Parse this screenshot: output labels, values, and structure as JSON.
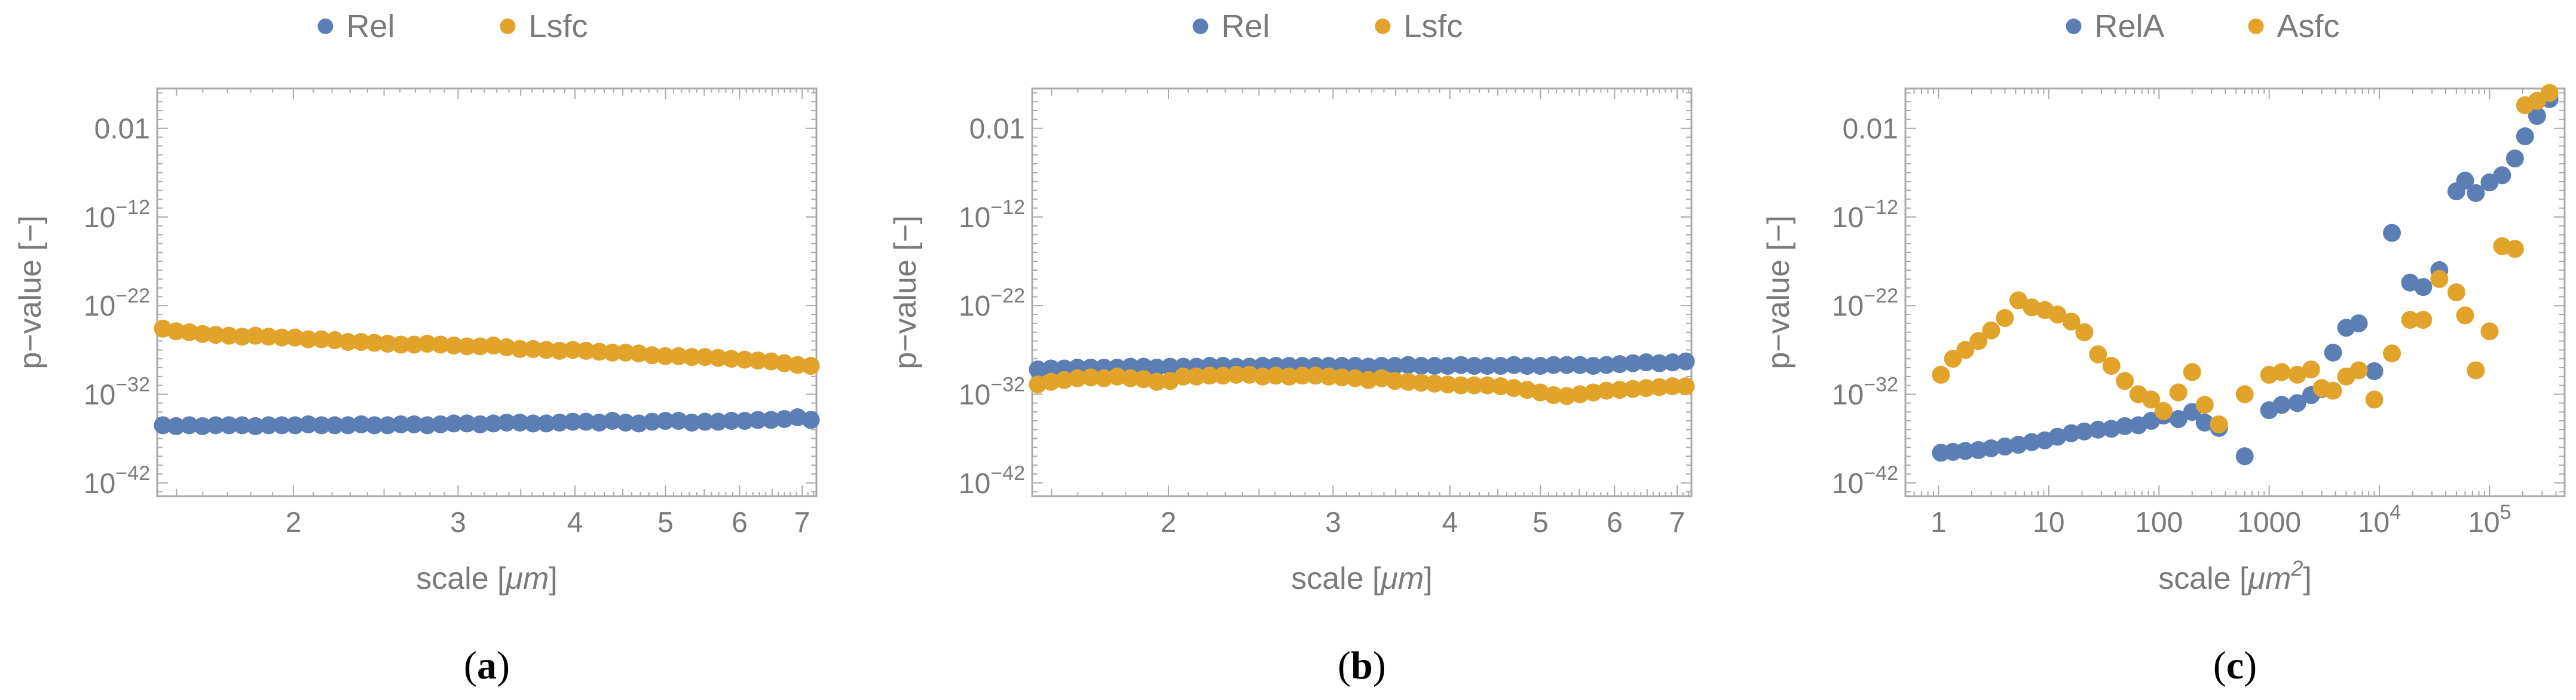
{
  "colors": {
    "blue": "#5b7fb4",
    "orange": "#e1a32a",
    "axis": "#aaaaaa",
    "text": "#7a7a7a",
    "caption": "#000000"
  },
  "chart_data": [
    {
      "id": "a",
      "type": "scatter",
      "caption": "a",
      "xscale": "log",
      "yscale": "log",
      "xlim": [
        1.43,
        7.25
      ],
      "ylim": [
        -43.5,
        2.5
      ],
      "xticks": [
        {
          "value": 2,
          "label": "2"
        },
        {
          "value": 3,
          "label": "3"
        },
        {
          "value": 4,
          "label": "4"
        },
        {
          "value": 5,
          "label": "5"
        },
        {
          "value": 6,
          "label": "6"
        },
        {
          "value": 7,
          "label": "7"
        }
      ],
      "yticks": [
        {
          "exp": -2,
          "base": "0.01",
          "sup": ""
        },
        {
          "exp": -12,
          "base": "10",
          "sup": "−12"
        },
        {
          "exp": -22,
          "base": "10",
          "sup": "−22"
        },
        {
          "exp": -32,
          "base": "10",
          "sup": "−32"
        },
        {
          "exp": -42,
          "base": "10",
          "sup": "−42"
        }
      ],
      "xlabel_main": "scale [",
      "xlabel_unit": "μm",
      "xlabel_sup": "",
      "xlabel_end": "]",
      "ylabel": "p−value [−]",
      "legend": [
        "Rel",
        "Lsfc"
      ],
      "series": [
        {
          "name": "Rel",
          "color": "blue",
          "x_start": 1.45,
          "x_end": 7.15,
          "n": 50,
          "y_exp": [
            -35.5,
            -35.6,
            -35.5,
            -35.6,
            -35.5,
            -35.5,
            -35.5,
            -35.6,
            -35.5,
            -35.5,
            -35.5,
            -35.4,
            -35.5,
            -35.5,
            -35.5,
            -35.4,
            -35.5,
            -35.5,
            -35.4,
            -35.4,
            -35.5,
            -35.4,
            -35.3,
            -35.3,
            -35.4,
            -35.3,
            -35.2,
            -35.2,
            -35.3,
            -35.3,
            -35.2,
            -35.1,
            -35.1,
            -35.2,
            -35.0,
            -35.2,
            -35.3,
            -35.1,
            -35.0,
            -35.0,
            -35.2,
            -35.1,
            -35.1,
            -35.0,
            -35.0,
            -34.9,
            -34.9,
            -34.8,
            -34.6,
            -34.9
          ]
        },
        {
          "name": "Lsfc",
          "color": "orange",
          "x_start": 1.45,
          "x_end": 7.15,
          "n": 50,
          "y_exp": [
            -24.6,
            -24.9,
            -25.0,
            -25.2,
            -25.3,
            -25.4,
            -25.5,
            -25.4,
            -25.5,
            -25.6,
            -25.6,
            -25.8,
            -25.8,
            -25.9,
            -26.1,
            -26.1,
            -26.2,
            -26.3,
            -26.4,
            -26.4,
            -26.3,
            -26.4,
            -26.5,
            -26.6,
            -26.6,
            -26.5,
            -26.7,
            -26.9,
            -26.9,
            -27.0,
            -27.1,
            -27.0,
            -27.1,
            -27.2,
            -27.3,
            -27.3,
            -27.4,
            -27.6,
            -27.7,
            -27.7,
            -27.8,
            -27.8,
            -27.9,
            -28.0,
            -28.1,
            -28.2,
            -28.3,
            -28.5,
            -28.7,
            -28.8
          ]
        }
      ]
    },
    {
      "id": "b",
      "type": "scatter",
      "caption": "b",
      "xscale": "log",
      "yscale": "log",
      "xlim": [
        1.43,
        7.25
      ],
      "ylim": [
        -43.5,
        2.5
      ],
      "xticks": [
        {
          "value": 2,
          "label": "2"
        },
        {
          "value": 3,
          "label": "3"
        },
        {
          "value": 4,
          "label": "4"
        },
        {
          "value": 5,
          "label": "5"
        },
        {
          "value": 6,
          "label": "6"
        },
        {
          "value": 7,
          "label": "7"
        }
      ],
      "yticks": [
        {
          "exp": -2,
          "base": "0.01",
          "sup": ""
        },
        {
          "exp": -12,
          "base": "10",
          "sup": "−12"
        },
        {
          "exp": -22,
          "base": "10",
          "sup": "−22"
        },
        {
          "exp": -32,
          "base": "10",
          "sup": "−32"
        },
        {
          "exp": -42,
          "base": "10",
          "sup": "−42"
        }
      ],
      "xlabel_main": "scale [",
      "xlabel_unit": "μm",
      "xlabel_sup": "",
      "xlabel_end": "]",
      "ylabel": "p−value [−]",
      "legend": [
        "Rel",
        "Lsfc"
      ],
      "series": [
        {
          "name": "Rel",
          "color": "blue",
          "x_start": 1.45,
          "x_end": 7.15,
          "n": 50,
          "y_exp": [
            -29.2,
            -29.1,
            -29.1,
            -29.0,
            -29.0,
            -29.0,
            -29.0,
            -28.9,
            -28.9,
            -29.0,
            -28.9,
            -28.9,
            -28.9,
            -28.8,
            -28.8,
            -28.9,
            -28.9,
            -28.8,
            -28.8,
            -28.8,
            -28.8,
            -28.8,
            -28.8,
            -28.8,
            -28.8,
            -28.9,
            -28.8,
            -28.8,
            -28.7,
            -28.8,
            -28.8,
            -28.8,
            -28.7,
            -28.8,
            -28.8,
            -28.8,
            -28.7,
            -28.8,
            -28.8,
            -28.7,
            -28.7,
            -28.7,
            -28.8,
            -28.7,
            -28.6,
            -28.5,
            -28.4,
            -28.5,
            -28.4,
            -28.3
          ]
        },
        {
          "name": "Lsfc",
          "color": "orange",
          "x_start": 1.45,
          "x_end": 7.15,
          "n": 50,
          "y_exp": [
            -30.9,
            -30.6,
            -30.4,
            -30.2,
            -30.1,
            -30.2,
            -30.0,
            -30.2,
            -30.3,
            -30.6,
            -30.5,
            -30.0,
            -30.0,
            -29.9,
            -29.9,
            -29.8,
            -29.8,
            -30.0,
            -29.9,
            -30.0,
            -29.9,
            -29.9,
            -30.0,
            -30.1,
            -30.2,
            -30.4,
            -30.2,
            -30.5,
            -30.6,
            -30.7,
            -30.8,
            -30.9,
            -31.0,
            -31.0,
            -31.0,
            -31.1,
            -31.3,
            -31.5,
            -31.8,
            -32.1,
            -32.2,
            -32.0,
            -31.8,
            -31.6,
            -31.5,
            -31.4,
            -31.3,
            -31.2,
            -31.1,
            -31.1
          ]
        }
      ]
    },
    {
      "id": "c",
      "type": "scatter",
      "caption": "c",
      "xscale": "log",
      "yscale": "log",
      "xlim": [
        0.5,
        480000
      ],
      "ylim": [
        -43.5,
        2.5
      ],
      "xticks": [
        {
          "value": 1,
          "label": "1",
          "sup": ""
        },
        {
          "value": 10,
          "label": "10",
          "sup": ""
        },
        {
          "value": 100,
          "label": "100",
          "sup": ""
        },
        {
          "value": 1000,
          "label": "1000",
          "sup": ""
        },
        {
          "value": 10000,
          "label": "10",
          "sup": "4"
        },
        {
          "value": 100000,
          "label": "10",
          "sup": "5"
        }
      ],
      "yticks": [
        {
          "exp": -2,
          "base": "0.01",
          "sup": ""
        },
        {
          "exp": -12,
          "base": "10",
          "sup": "−12"
        },
        {
          "exp": -22,
          "base": "10",
          "sup": "−22"
        },
        {
          "exp": -32,
          "base": "10",
          "sup": "−32"
        },
        {
          "exp": -42,
          "base": "10",
          "sup": "−42"
        }
      ],
      "xlabel_main": "scale [",
      "xlabel_unit": "μm",
      "xlabel_sup": "2",
      "xlabel_end": "]",
      "ylabel": "p−value [−]",
      "legend": [
        "RelA",
        "Asfc"
      ],
      "series": [
        {
          "name": "RelA",
          "color": "blue",
          "points": [
            [
              1.05,
              -38.6
            ],
            [
              1.35,
              -38.5
            ],
            [
              1.75,
              -38.4
            ],
            [
              2.3,
              -38.3
            ],
            [
              3.0,
              -38.1
            ],
            [
              4.0,
              -37.9
            ],
            [
              5.3,
              -37.7
            ],
            [
              7.0,
              -37.4
            ],
            [
              9.2,
              -37.2
            ],
            [
              12,
              -36.8
            ],
            [
              16,
              -36.4
            ],
            [
              21,
              -36.2
            ],
            [
              28,
              -36.0
            ],
            [
              37,
              -35.9
            ],
            [
              49,
              -35.6
            ],
            [
              65,
              -35.5
            ],
            [
              85,
              -35.0
            ],
            [
              110,
              -34.4
            ],
            [
              150,
              -34.8
            ],
            [
              200,
              -34.0
            ],
            [
              260,
              -35.2
            ],
            [
              350,
              -35.8
            ],
            [
              600,
              -39.0
            ],
            [
              1000,
              -33.8
            ],
            [
              1300,
              -33.2
            ],
            [
              1800,
              -33.0
            ],
            [
              2400,
              -32.1
            ],
            [
              3000,
              -31.4
            ],
            [
              3800,
              -27.3
            ],
            [
              5000,
              -24.5
            ],
            [
              6500,
              -24.0
            ],
            [
              9000,
              -29.4
            ],
            [
              13000,
              -13.8
            ],
            [
              19000,
              -19.4
            ],
            [
              25000,
              -19.9
            ],
            [
              35000,
              -18.0
            ],
            [
              50000,
              -9.1
            ],
            [
              60000,
              -7.9
            ],
            [
              75000,
              -9.3
            ],
            [
              100000,
              -8.1
            ],
            [
              130000,
              -7.3
            ],
            [
              170000,
              -5.4
            ],
            [
              210000,
              -2.9
            ],
            [
              270000,
              -0.6
            ],
            [
              350000,
              1.3
            ]
          ]
        },
        {
          "name": "Asfc",
          "color": "orange",
          "points": [
            [
              1.05,
              -29.8
            ],
            [
              1.35,
              -28.0
            ],
            [
              1.75,
              -27.0
            ],
            [
              2.3,
              -26.0
            ],
            [
              3.0,
              -24.8
            ],
            [
              4.0,
              -23.4
            ],
            [
              5.3,
              -21.4
            ],
            [
              7.0,
              -22.2
            ],
            [
              9.2,
              -22.5
            ],
            [
              12,
              -23.0
            ],
            [
              16,
              -23.8
            ],
            [
              21,
              -25.0
            ],
            [
              28,
              -27.5
            ],
            [
              37,
              -28.8
            ],
            [
              49,
              -30.5
            ],
            [
              65,
              -32.0
            ],
            [
              85,
              -32.6
            ],
            [
              110,
              -33.9
            ],
            [
              150,
              -31.8
            ],
            [
              200,
              -29.5
            ],
            [
              260,
              -33.2
            ],
            [
              350,
              -35.4
            ],
            [
              600,
              -32.0
            ],
            [
              1000,
              -29.8
            ],
            [
              1300,
              -29.5
            ],
            [
              1800,
              -29.8
            ],
            [
              2400,
              -29.2
            ],
            [
              3000,
              -31.3
            ],
            [
              3800,
              -31.6
            ],
            [
              5000,
              -30.0
            ],
            [
              6500,
              -29.3
            ],
            [
              9000,
              -32.6
            ],
            [
              13000,
              -27.4
            ],
            [
              19000,
              -23.6
            ],
            [
              25000,
              -23.6
            ],
            [
              35000,
              -19.0
            ],
            [
              50000,
              -20.5
            ],
            [
              60000,
              -23.1
            ],
            [
              75000,
              -29.3
            ],
            [
              100000,
              -24.9
            ],
            [
              130000,
              -15.3
            ],
            [
              170000,
              -15.6
            ],
            [
              210000,
              0.6
            ],
            [
              270000,
              1.1
            ],
            [
              350000,
              2.0
            ]
          ]
        }
      ]
    }
  ]
}
